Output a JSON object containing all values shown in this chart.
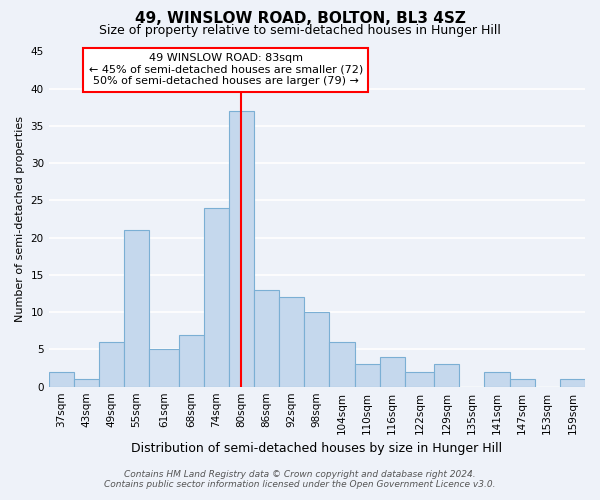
{
  "title": "49, WINSLOW ROAD, BOLTON, BL3 4SZ",
  "subtitle": "Size of property relative to semi-detached houses in Hunger Hill",
  "xlabel": "Distribution of semi-detached houses by size in Hunger Hill",
  "ylabel": "Number of semi-detached properties",
  "bin_labels": [
    "37sqm",
    "43sqm",
    "49sqm",
    "55sqm",
    "61sqm",
    "68sqm",
    "74sqm",
    "80sqm",
    "86sqm",
    "92sqm",
    "98sqm",
    "104sqm",
    "110sqm",
    "116sqm",
    "122sqm",
    "129sqm",
    "135sqm",
    "141sqm",
    "147sqm",
    "153sqm",
    "159sqm"
  ],
  "bar_values": [
    2,
    1,
    6,
    21,
    5,
    7,
    24,
    37,
    13,
    12,
    10,
    6,
    3,
    4,
    2,
    3,
    0,
    2,
    1,
    0,
    1
  ],
  "bar_color": "#c5d8ed",
  "bar_edge_color": "#7bafd4",
  "property_line_x": 83,
  "bin_edges": [
    37,
    43,
    49,
    55,
    61,
    68,
    74,
    80,
    86,
    92,
    98,
    104,
    110,
    116,
    122,
    129,
    135,
    141,
    147,
    153,
    159,
    165
  ],
  "ylim": [
    0,
    45
  ],
  "yticks": [
    0,
    5,
    10,
    15,
    20,
    25,
    30,
    35,
    40,
    45
  ],
  "annotation_title": "49 WINSLOW ROAD: 83sqm",
  "annotation_line1": "← 45% of semi-detached houses are smaller (72)",
  "annotation_line2": "50% of semi-detached houses are larger (79) →",
  "footer1": "Contains HM Land Registry data © Crown copyright and database right 2024.",
  "footer2": "Contains public sector information licensed under the Open Government Licence v3.0.",
  "bg_color": "#eef2f9",
  "grid_color": "#ffffff",
  "title_fontsize": 11,
  "subtitle_fontsize": 9,
  "xlabel_fontsize": 9,
  "ylabel_fontsize": 8,
  "tick_fontsize": 7.5,
  "annotation_fontsize": 8,
  "footer_fontsize": 6.5
}
